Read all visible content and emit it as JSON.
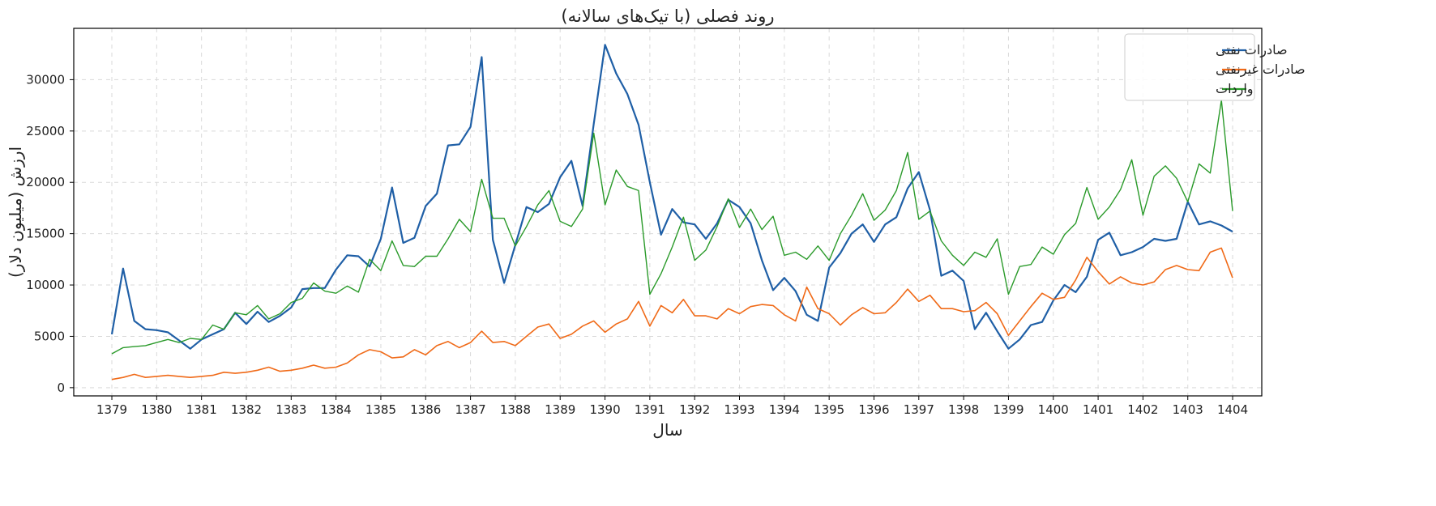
{
  "chart_data": {
    "type": "line",
    "title": "روند فصلی (با تیک‌های سالانه)",
    "xlabel": "سال",
    "ylabel": "ارزش (میلیون دلار)",
    "xlim": [
      1378.15,
      1404.65
    ],
    "ylim": [
      -800,
      35000
    ],
    "xticks": [
      1379,
      1380,
      1381,
      1382,
      1383,
      1384,
      1385,
      1386,
      1387,
      1388,
      1389,
      1390,
      1391,
      1392,
      1393,
      1394,
      1395,
      1396,
      1397,
      1398,
      1399,
      1400,
      1401,
      1402,
      1403,
      1404
    ],
    "yticks": [
      0,
      5000,
      10000,
      15000,
      20000,
      25000,
      30000
    ],
    "grid": true,
    "legend_position": "top-right",
    "x": [
      1379,
      1379.25,
      1379.5,
      1379.75,
      1380,
      1380.25,
      1380.5,
      1380.75,
      1381,
      1381.25,
      1381.5,
      1381.75,
      1382,
      1382.25,
      1382.5,
      1382.75,
      1383,
      1383.25,
      1383.5,
      1383.75,
      1384,
      1384.25,
      1384.5,
      1384.75,
      1385,
      1385.25,
      1385.5,
      1385.75,
      1386,
      1386.25,
      1386.5,
      1386.75,
      1387,
      1387.25,
      1387.5,
      1387.75,
      1388,
      1388.25,
      1388.5,
      1388.75,
      1389,
      1389.25,
      1389.5,
      1389.75,
      1390,
      1390.25,
      1390.5,
      1390.75,
      1391,
      1391.25,
      1391.5,
      1391.75,
      1392,
      1392.25,
      1392.5,
      1392.75,
      1393,
      1393.25,
      1393.5,
      1393.75,
      1394,
      1394.25,
      1394.5,
      1394.75,
      1395,
      1395.25,
      1395.5,
      1395.75,
      1396,
      1396.25,
      1396.5,
      1396.75,
      1397,
      1397.25,
      1397.5,
      1397.75,
      1398,
      1398.25,
      1398.5,
      1398.75,
      1399,
      1399.25,
      1399.5,
      1399.75,
      1400,
      1400.25,
      1400.5,
      1400.75,
      1401,
      1401.25,
      1401.5,
      1401.75,
      1402,
      1402.25,
      1402.5,
      1402.75,
      1403,
      1403.25,
      1403.5,
      1403.75,
      1404
    ],
    "series": [
      {
        "name": "صادرات نفتی",
        "color": "#1f5fa6",
        "stroke_width": 2.2,
        "values": [
          5200,
          11600,
          6500,
          5700,
          5600,
          5400,
          4600,
          3800,
          4700,
          5200,
          5700,
          7300,
          6200,
          7400,
          6400,
          7000,
          7800,
          9600,
          9700,
          9700,
          11500,
          12900,
          12800,
          11800,
          14500,
          19500,
          14100,
          14600,
          17700,
          18900,
          23600,
          23700,
          25400,
          32200,
          14400,
          10200,
          13900,
          17600,
          17100,
          17900,
          20500,
          22100,
          17700,
          25700,
          33400,
          30600,
          28600,
          25600,
          20000,
          14900,
          17400,
          16100,
          15900,
          14500,
          16000,
          18300,
          17600,
          16000,
          12400,
          9500,
          10700,
          9400,
          7100,
          6500,
          11700,
          13100,
          15000,
          15900,
          14200,
          15900,
          16600,
          19400,
          21000,
          17300,
          10900,
          11400,
          10400,
          5700,
          7300,
          5500,
          3800,
          4700,
          6100,
          6400,
          8500,
          10000,
          9300,
          10800,
          14400,
          15100,
          12900,
          13200,
          13700,
          14500,
          14300,
          14500,
          18100,
          15900,
          16200,
          15800,
          15200
        ]
      },
      {
        "name": "صادرات غیرنفتی",
        "color": "#f06a18",
        "stroke_width": 1.6,
        "values": [
          800,
          1000,
          1300,
          1000,
          1100,
          1200,
          1100,
          1000,
          1100,
          1200,
          1500,
          1400,
          1500,
          1700,
          2000,
          1600,
          1700,
          1900,
          2200,
          1900,
          2000,
          2400,
          3200,
          3700,
          3500,
          2900,
          3000,
          3700,
          3200,
          4100,
          4500,
          3900,
          4400,
          5500,
          4400,
          4500,
          4100,
          5000,
          5900,
          6200,
          4800,
          5200,
          6000,
          6500,
          5400,
          6200,
          6700,
          8400,
          6000,
          8000,
          7300,
          8600,
          7000,
          7000,
          6700,
          7700,
          7200,
          7900,
          8100,
          8000,
          7100,
          6500,
          9800,
          7700,
          7200,
          6100,
          7100,
          7800,
          7200,
          7300,
          8300,
          9600,
          8400,
          9000,
          7700,
          7700,
          7400,
          7500,
          8300,
          7200,
          5100,
          6500,
          7900,
          9200,
          8600,
          8800,
          10500,
          12700,
          11300,
          10100,
          10800,
          10200,
          10000,
          10300,
          11500,
          11900,
          11500,
          11400,
          13200,
          13600,
          10700
        ]
      },
      {
        "name": "واردات",
        "color": "#2a9a2a",
        "stroke_width": 1.4,
        "values": [
          3300,
          3900,
          4000,
          4100,
          4400,
          4700,
          4400,
          4800,
          4700,
          6100,
          5700,
          7300,
          7100,
          8000,
          6700,
          7200,
          8300,
          8700,
          10200,
          9400,
          9200,
          9900,
          9300,
          12500,
          11400,
          14300,
          11900,
          11800,
          12800,
          12800,
          14500,
          16400,
          15200,
          20300,
          16500,
          16500,
          13800,
          15700,
          17800,
          19200,
          16200,
          15700,
          17400,
          24800,
          17800,
          21200,
          19600,
          19200,
          9100,
          11100,
          13700,
          16600,
          12400,
          13400,
          15700,
          18400,
          15600,
          17400,
          15400,
          16700,
          12900,
          13200,
          12500,
          13800,
          12400,
          15000,
          16800,
          18900,
          16300,
          17300,
          19200,
          22900,
          16400,
          17200,
          14300,
          12900,
          11900,
          13200,
          12700,
          14500,
          9100,
          11800,
          12000,
          13700,
          13000,
          14900,
          16000,
          19500,
          16400,
          17600,
          19300,
          22200,
          16800,
          20600,
          21600,
          20400,
          18100,
          21800,
          20900,
          28000,
          17200
        ]
      }
    ]
  }
}
